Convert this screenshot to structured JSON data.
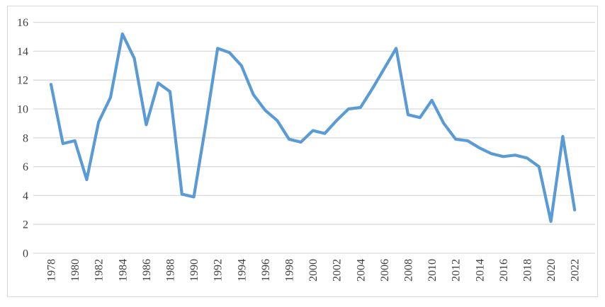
{
  "chart_data": {
    "type": "line",
    "title": "",
    "xlabel": "",
    "ylabel": "",
    "x": [
      1978,
      1979,
      1980,
      1981,
      1982,
      1983,
      1984,
      1985,
      1986,
      1987,
      1988,
      1989,
      1990,
      1991,
      1992,
      1993,
      1994,
      1995,
      1996,
      1997,
      1998,
      1999,
      2000,
      2001,
      2002,
      2003,
      2004,
      2005,
      2006,
      2007,
      2008,
      2009,
      2010,
      2011,
      2012,
      2013,
      2014,
      2015,
      2016,
      2017,
      2018,
      2019,
      2020,
      2021,
      2022
    ],
    "values": [
      11.7,
      7.6,
      7.8,
      5.1,
      9.1,
      10.8,
      15.2,
      13.5,
      8.9,
      11.8,
      11.2,
      4.1,
      3.9,
      8.9,
      14.2,
      13.9,
      13.0,
      11.0,
      9.9,
      9.2,
      7.9,
      7.7,
      8.5,
      8.3,
      9.2,
      10.0,
      10.1,
      11.4,
      12.8,
      14.2,
      9.6,
      9.4,
      10.6,
      9.0,
      7.9,
      7.8,
      7.3,
      6.9,
      6.7,
      6.8,
      6.6,
      6.0,
      2.2,
      8.1,
      3.0
    ],
    "ylim": [
      0,
      16
    ],
    "y_ticks": [
      0,
      2,
      4,
      6,
      8,
      10,
      12,
      14,
      16
    ],
    "x_tick_labels": [
      "1978",
      "1980",
      "1982",
      "1984",
      "1986",
      "1988",
      "1990",
      "1992",
      "1994",
      "1996",
      "1998",
      "2000",
      "2002",
      "2004",
      "2006",
      "2008",
      "2010",
      "2012",
      "2014",
      "2016",
      "2018",
      "2020",
      "2022"
    ],
    "x_tick_step": 2,
    "grid": true,
    "legend": false,
    "colors": {
      "line": "#5B9BD5",
      "gridline": "#D9D9D9",
      "axis_label": "#404040",
      "frame_border": "#D9D9D9",
      "background": "#FFFFFF"
    }
  }
}
